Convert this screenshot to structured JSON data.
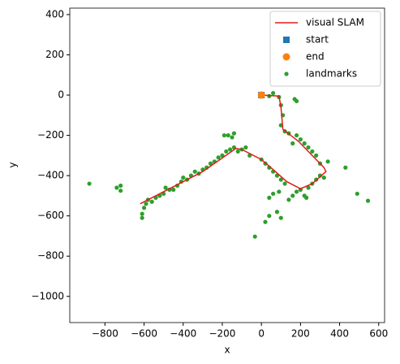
{
  "chart_data": {
    "type": "scatter",
    "xlabel": "x",
    "ylabel": "y",
    "xlim": [
      -980,
      630
    ],
    "ylim": [
      -1130,
      432
    ],
    "xticks": [
      {
        "value": -800,
        "label": "−800"
      },
      {
        "value": -600,
        "label": "−600"
      },
      {
        "value": -400,
        "label": "−400"
      },
      {
        "value": -200,
        "label": "−200"
      },
      0,
      200,
      400,
      600
    ],
    "yticks": [
      {
        "value": -1000,
        "label": "−1000"
      },
      {
        "value": -800,
        "label": "−800"
      },
      {
        "value": -600,
        "label": "−600"
      },
      {
        "value": -400,
        "label": "−400"
      },
      {
        "value": -200,
        "label": "−200"
      },
      0,
      200,
      400
    ],
    "legend": "upper right",
    "series": [
      {
        "name": "visual SLAM",
        "color": "#e41a1c",
        "marker": "line",
        "x": [
          0,
          90,
          100,
          110,
          190,
          320,
          330,
          260,
          200,
          130,
          60,
          0,
          -100,
          -130,
          -300,
          -620
        ],
        "values": [
          0,
          -5,
          -60,
          -170,
          -230,
          -360,
          -380,
          -440,
          -465,
          -430,
          -370,
          -320,
          -270,
          -265,
          -380,
          -540
        ]
      },
      {
        "name": "start",
        "color": "#1f77b4",
        "marker": "square",
        "x": [
          0
        ],
        "values": [
          0
        ]
      },
      {
        "name": "end",
        "color": "#ff7f0e",
        "marker": "circle",
        "x": [
          0
        ],
        "values": [
          0
        ]
      },
      {
        "name": "landmarks",
        "color": "#2ca02c",
        "marker": "dot",
        "x": [
          -880,
          -740,
          -720,
          -720,
          -610,
          -610,
          -600,
          -590,
          -580,
          -560,
          -540,
          -520,
          -500,
          -490,
          -470,
          -450,
          -430,
          -410,
          -400,
          -380,
          -360,
          -340,
          -320,
          -300,
          -280,
          -260,
          -240,
          -220,
          -200,
          -190,
          -170,
          -150,
          -140,
          -180,
          -160,
          -140,
          -120,
          -100,
          -80,
          -60,
          -33,
          0,
          20,
          40,
          60,
          80,
          100,
          120,
          60,
          40,
          20,
          40,
          80,
          100,
          90,
          140,
          160,
          180,
          200,
          220,
          240,
          260,
          280,
          300,
          320,
          340,
          300,
          280,
          260,
          240,
          220,
          200,
          180,
          160,
          140,
          120,
          100,
          110,
          100,
          90,
          60,
          40,
          170,
          180,
          430,
          490,
          545,
          230
        ],
        "values": [
          -440,
          -460,
          -450,
          -475,
          -590,
          -610,
          -560,
          -540,
          -520,
          -530,
          -510,
          -500,
          -490,
          -460,
          -470,
          -470,
          -450,
          -430,
          -410,
          -420,
          -400,
          -380,
          -390,
          -370,
          -360,
          -340,
          -330,
          -310,
          -300,
          -200,
          -200,
          -210,
          -190,
          -280,
          -270,
          -260,
          -280,
          -270,
          -260,
          -300,
          -703,
          -320,
          -340,
          -360,
          -380,
          -400,
          -420,
          -440,
          -490,
          -510,
          -630,
          -600,
          -580,
          -610,
          -480,
          -520,
          -500,
          -480,
          -470,
          -500,
          -460,
          -440,
          -420,
          -400,
          -410,
          -330,
          -340,
          -300,
          -280,
          -260,
          -240,
          -220,
          -200,
          -240,
          -190,
          -180,
          -150,
          -100,
          -50,
          -10,
          10,
          -5,
          -20,
          -30,
          -360,
          -490,
          -525,
          -510
        ]
      }
    ]
  }
}
